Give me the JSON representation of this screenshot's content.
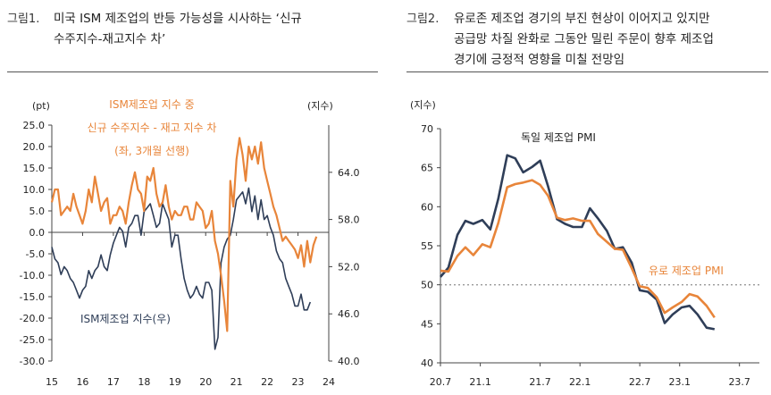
{
  "colors": {
    "orange": "#E8853A",
    "navy": "#2F3E58",
    "axis": "#444444",
    "ref": "#999999"
  },
  "left_caption": {
    "number": "그림1.",
    "line1": "미국 ISM 제조업의 반등 가능성을 시사하는 ‘신규",
    "line2": "수주지수-재고지수 차’"
  },
  "right_caption": {
    "number": "그림2.",
    "line1": "유로존 제조업 경기의 부진 현상이 이어지고 있지만",
    "line2": "공급망 차질 완화로 그동안 밀린 주문이 향후 제조업",
    "line3": "경기에 긍정적 영향을 미칠 전망임"
  },
  "chart_data": [
    {
      "type": "line",
      "left_unit": "(pt)",
      "right_unit": "(지수)",
      "annotation_orange": [
        "ISM제조업 지수 중",
        "신규 수주지수 - 재고 지수 차",
        "(좌, 3개월 선행)"
      ],
      "annotation_navy": "ISM제조업 지수(우)",
      "ylim_left": [
        -30,
        25
      ],
      "yticks_left": [
        "25.0",
        "20.0",
        "15.0",
        "10.0",
        "5.0",
        "0.0",
        "-5.0",
        "-10.0",
        "-15.0",
        "-20.0",
        "-25.0",
        "-30.0"
      ],
      "ylim_right": [
        40,
        70
      ],
      "yticks_right": [
        "64.0",
        "58.0",
        "52.0",
        "46.0",
        "40.0"
      ],
      "xlim": [
        15,
        24
      ],
      "xticks": [
        "15",
        "16",
        "17",
        "18",
        "19",
        "20",
        "21",
        "22",
        "23",
        "24"
      ],
      "series": [
        {
          "name": "ISM제조업 지수 중 신규 수주지수 - 재고 지수 차",
          "axis": "left",
          "x": [
            15.0,
            15.1,
            15.2,
            15.3,
            15.4,
            15.5,
            15.6,
            15.7,
            15.8,
            15.9,
            16.0,
            16.1,
            16.2,
            16.3,
            16.4,
            16.5,
            16.6,
            16.7,
            16.8,
            16.9,
            17.0,
            17.1,
            17.2,
            17.3,
            17.4,
            17.5,
            17.6,
            17.7,
            17.8,
            17.9,
            18.0,
            18.1,
            18.2,
            18.3,
            18.4,
            18.5,
            18.6,
            18.7,
            18.8,
            18.9,
            19.0,
            19.1,
            19.2,
            19.3,
            19.4,
            19.5,
            19.6,
            19.7,
            19.8,
            19.9,
            20.0,
            20.1,
            20.2,
            20.3,
            20.4,
            20.5,
            20.6,
            20.7,
            20.8,
            20.9,
            21.0,
            21.1,
            21.2,
            21.3,
            21.4,
            21.5,
            21.6,
            21.7,
            21.8,
            21.9,
            22.0,
            22.1,
            22.2,
            22.3,
            22.4,
            22.5,
            22.6,
            22.7,
            22.8,
            22.9,
            23.0,
            23.1,
            23.2,
            23.3,
            23.4,
            23.5,
            23.6
          ],
          "y": [
            7,
            10,
            10,
            4,
            5,
            6,
            5,
            9,
            6,
            4,
            2,
            5,
            10,
            7,
            13,
            9,
            5,
            7,
            8,
            2,
            4,
            4,
            6,
            5,
            2,
            7,
            11,
            14,
            10,
            9,
            5,
            13,
            12,
            15,
            9,
            6,
            7,
            11,
            6,
            3,
            5,
            4,
            4,
            6,
            6,
            3,
            3,
            7,
            6,
            5,
            1,
            2,
            5,
            -2,
            -5,
            -10,
            -16,
            -23,
            12,
            6,
            17,
            22,
            18,
            12,
            20,
            17,
            20,
            16,
            21,
            15,
            12,
            9,
            6,
            4,
            1,
            -2,
            -1,
            -2,
            -3,
            -4,
            -6,
            -3,
            -8,
            -2,
            -7,
            -3,
            -1
          ]
        },
        {
          "name": "ISM제조업 지수(우)",
          "axis": "right",
          "x": [
            15.0,
            15.1,
            15.2,
            15.3,
            15.4,
            15.5,
            15.6,
            15.7,
            15.8,
            15.9,
            16.0,
            16.1,
            16.2,
            16.3,
            16.4,
            16.5,
            16.6,
            16.7,
            16.8,
            16.9,
            17.0,
            17.1,
            17.2,
            17.3,
            17.4,
            17.5,
            17.6,
            17.7,
            17.8,
            17.9,
            18.0,
            18.1,
            18.2,
            18.3,
            18.4,
            18.5,
            18.6,
            18.7,
            18.8,
            18.9,
            19.0,
            19.1,
            19.2,
            19.3,
            19.4,
            19.5,
            19.6,
            19.7,
            19.8,
            19.9,
            20.0,
            20.1,
            20.2,
            20.3,
            20.4,
            20.5,
            20.6,
            20.7,
            20.8,
            20.9,
            21.0,
            21.1,
            21.2,
            21.3,
            21.4,
            21.5,
            21.6,
            21.7,
            21.8,
            21.9,
            22.0,
            22.1,
            22.2,
            22.3,
            22.4,
            22.5,
            22.6,
            22.7,
            22.8,
            22.9,
            23.0,
            23.1,
            23.2,
            23.3,
            23.4
          ],
          "y": [
            54.5,
            53,
            52.5,
            51,
            52,
            51.5,
            50.5,
            50,
            49,
            48,
            49,
            49.5,
            51.5,
            50.5,
            51.5,
            52,
            53.5,
            52,
            51.5,
            53.5,
            55,
            56,
            57,
            56.5,
            54.5,
            57,
            57.5,
            58.5,
            58.5,
            56,
            59,
            59.5,
            60,
            58.5,
            57,
            57.5,
            60,
            59,
            58,
            54.5,
            56,
            56,
            53,
            50.5,
            49,
            48,
            48.5,
            49.5,
            48.5,
            48,
            50,
            50,
            49,
            41.5,
            43,
            52.5,
            54.5,
            55.5,
            56,
            58,
            60.5,
            61,
            61.5,
            60,
            62,
            59,
            61,
            58,
            60.5,
            58,
            58.5,
            57,
            56,
            54,
            53,
            52.5,
            50.5,
            49.5,
            48.5,
            47,
            47,
            48.5,
            46.5,
            46.5,
            47.5
          ]
        }
      ]
    },
    {
      "type": "line",
      "y_unit": "(지수)",
      "ylim": [
        40,
        70
      ],
      "yticks": [
        "70",
        "65",
        "60",
        "55",
        "50",
        "45",
        "40"
      ],
      "xticks": [
        "20.7",
        "21.1",
        "21.7",
        "22.1",
        "22.7",
        "23.1",
        "23.7"
      ],
      "xlim": [
        20.7,
        23.9
      ],
      "reference_line": 50,
      "series": [
        {
          "name": "독일 제조업 PMI",
          "x": [
            20.7,
            20.78,
            20.87,
            20.95,
            21.03,
            21.12,
            21.2,
            21.28,
            21.37,
            21.45,
            21.53,
            21.62,
            21.7,
            21.78,
            21.87,
            21.95,
            22.03,
            22.12,
            22.2,
            22.28,
            22.37,
            22.45,
            22.53,
            22.62,
            22.7,
            22.78,
            22.87,
            22.95,
            23.03,
            23.12,
            23.2,
            23.28,
            23.37,
            23.45
          ],
          "y": [
            51,
            52.2,
            56.4,
            58.2,
            57.8,
            58.3,
            57.1,
            61,
            66.6,
            66.2,
            64.4,
            65.1,
            65.9,
            62.6,
            58.4,
            57.8,
            57.4,
            57.4,
            59.8,
            58.5,
            56.9,
            54.6,
            54.8,
            52.8,
            49.3,
            49.1,
            48.1,
            45.1,
            46.2,
            47.1,
            47.3,
            46.2,
            44.5,
            44.3
          ]
        },
        {
          "name": "유로 제조업 PMI",
          "x": [
            20.7,
            20.78,
            20.87,
            20.95,
            21.03,
            21.12,
            21.2,
            21.28,
            21.37,
            21.45,
            21.53,
            21.62,
            21.7,
            21.78,
            21.87,
            21.95,
            22.03,
            22.12,
            22.2,
            22.28,
            22.37,
            22.45,
            22.53,
            22.62,
            22.7,
            22.78,
            22.87,
            22.95,
            23.03,
            23.12,
            23.2,
            23.28,
            23.37,
            23.45
          ],
          "y": [
            51.8,
            51.7,
            53.7,
            54.8,
            53.8,
            55.2,
            54.8,
            57.9,
            62.5,
            62.9,
            63.1,
            63.4,
            62.8,
            61.4,
            58.6,
            58.3,
            58.5,
            58.2,
            58.2,
            56.5,
            55.5,
            54.6,
            54.5,
            52.1,
            49.8,
            49.6,
            48.4,
            46.4,
            47.1,
            47.8,
            48.8,
            48.5,
            47.3,
            45.8
          ]
        }
      ]
    }
  ]
}
